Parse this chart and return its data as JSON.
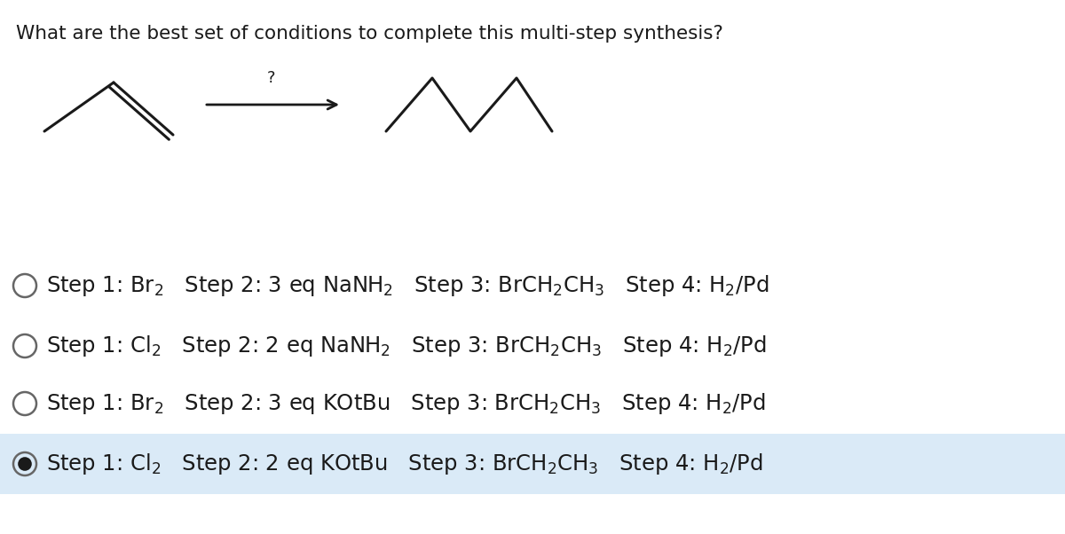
{
  "title": "What are the best set of conditions to complete this multi-step synthesis?",
  "title_fontsize": 15.5,
  "background_color": "#ffffff",
  "selected_bg_color": "#daeaf7",
  "options": [
    {
      "label": "Step 1: Br$_2$  Step 2: 3 eq NaNH$_2$  Step 3: BrCH$_2$CH$_3$  Step 4: H$_2$/Pd",
      "selected": false
    },
    {
      "label": "Step 1: Cl$_2$  Step 2: 2 eq NaNH$_2$  Step 3: BrCH$_2$CH$_3$  Step 4: H$_2$/Pd",
      "selected": false
    },
    {
      "label": "Step 1: Br$_2$  Step 2: 3 eq KOtBu  Step 3: BrCH$_2$CH$_3$  Step 4: H$_2$/Pd",
      "selected": false
    },
    {
      "label": "Step 1: Cl$_2$  Step 2: 2 eq KOtBu  Step 3: BrCH$_2$CH$_3$  Step 4: H$_2$/Pd",
      "selected": true
    }
  ]
}
